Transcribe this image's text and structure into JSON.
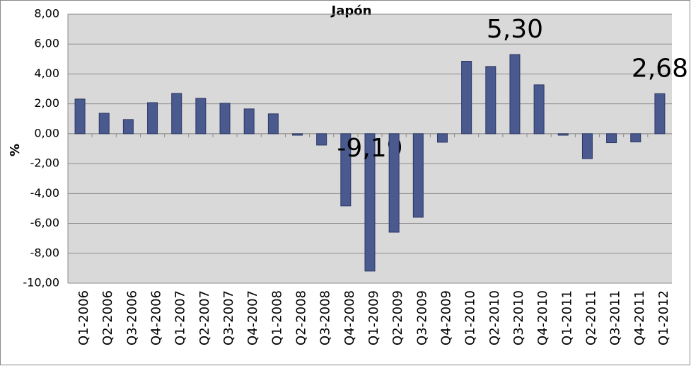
{
  "chart_data": {
    "type": "bar",
    "title": "Japón",
    "y_label": "%",
    "categories": [
      "Q1-2006",
      "Q2-2006",
      "Q3-2006",
      "Q4-2006",
      "Q1-2007",
      "Q2-2007",
      "Q3-2007",
      "Q4-2007",
      "Q1-2008",
      "Q2-2008",
      "Q3-2008",
      "Q4-2008",
      "Q1-2009",
      "Q2-2009",
      "Q3-2009",
      "Q4-2009",
      "Q1-2010",
      "Q2-2010",
      "Q3-2010",
      "Q4-2010",
      "Q1-2011",
      "Q2-2011",
      "Q3-2011",
      "Q4-2011",
      "Q1-2012"
    ],
    "values": [
      2.32,
      1.37,
      0.95,
      2.08,
      2.7,
      2.37,
      2.04,
      1.66,
      1.33,
      -0.1,
      -0.76,
      -4.83,
      -9.19,
      -6.59,
      -5.59,
      -0.57,
      4.85,
      4.5,
      5.3,
      3.27,
      -0.1,
      -1.67,
      -0.6,
      -0.55,
      2.68
    ],
    "value_labels": [
      null,
      null,
      null,
      null,
      null,
      null,
      null,
      null,
      null,
      null,
      null,
      null,
      "-9,19",
      null,
      null,
      null,
      null,
      null,
      "5,30",
      null,
      null,
      null,
      null,
      null,
      "2,68"
    ],
    "color": "#4a5a8e",
    "ylim": [
      -10,
      8
    ],
    "yticks": [
      {
        "value": -10,
        "label": "-10,00"
      },
      {
        "value": -8,
        "label": "-8,00"
      },
      {
        "value": -6,
        "label": "-6,00"
      },
      {
        "value": -4,
        "label": "-4,00"
      },
      {
        "value": -2,
        "label": "-2,00"
      },
      {
        "value": 0,
        "label": "0,00"
      },
      {
        "value": 2,
        "label": "2,00"
      },
      {
        "value": 4,
        "label": "4,00"
      },
      {
        "value": 6,
        "label": "6,00"
      },
      {
        "value": 8,
        "label": "8,00"
      }
    ],
    "grid": true
  }
}
